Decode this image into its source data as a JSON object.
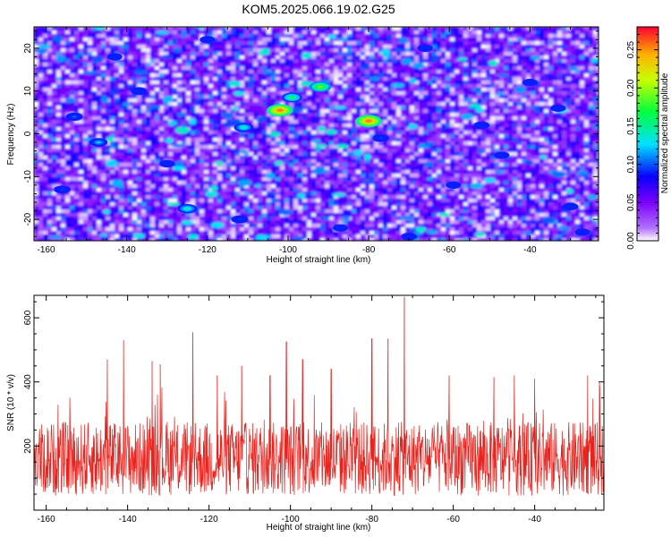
{
  "title": "KOM5.2025.066.19.02.G25",
  "chart_data": [
    {
      "type": "heatmap",
      "title": "KOM5.2025.066.19.02.G25",
      "xlabel": "Height of straight line (km)",
      "ylabel": "Frequency (Hz)",
      "xlim": [
        -163,
        -23
      ],
      "ylim": [
        -25,
        25
      ],
      "x_ticks": [
        -160,
        -140,
        -120,
        -100,
        -80,
        -60,
        -40
      ],
      "x_tick_labels": [
        "-160",
        "-140",
        "-120",
        "-100",
        "-80",
        "-60",
        "-40"
      ],
      "y_ticks": [
        -20,
        -10,
        0,
        10,
        20
      ],
      "y_tick_labels": [
        "-20",
        "-10",
        "0",
        "10",
        "20"
      ],
      "colorbar": {
        "label": "Normalized spectral amplitude",
        "range": [
          0,
          0.28
        ],
        "ticks": [
          0,
          0.05,
          0.1,
          0.15,
          0.2,
          0.25
        ],
        "tick_labels": [
          "0.00",
          "0.05",
          "0.10",
          "0.15",
          "0.20",
          "0.25"
        ],
        "colormap": [
          "#ffffff",
          "#8800ff",
          "#0000ff",
          "#00ffff",
          "#00ff00",
          "#ffff00",
          "#ff0000"
        ]
      },
      "peaks": [
        {
          "x": -102,
          "y": 5.5,
          "value": 0.27
        },
        {
          "x": -80,
          "y": 3,
          "value": 0.27
        },
        {
          "x": -92,
          "y": 11,
          "value": 0.2
        },
        {
          "x": -99,
          "y": 8.5,
          "value": 0.17
        },
        {
          "x": -111,
          "y": 1.5,
          "value": 0.15
        },
        {
          "x": -125,
          "y": -17.5,
          "value": 0.15
        },
        {
          "x": -147,
          "y": -2,
          "value": 0.13
        },
        {
          "x": -153,
          "y": 4,
          "value": 0.11
        },
        {
          "x": -112,
          "y": -20,
          "value": 0.1
        },
        {
          "x": -77,
          "y": -1,
          "value": 0.1
        },
        {
          "x": -156,
          "y": -13,
          "value": 0.1
        },
        {
          "x": -137,
          "y": 10,
          "value": 0.09
        },
        {
          "x": -52,
          "y": 2,
          "value": 0.09
        },
        {
          "x": -30,
          "y": -17,
          "value": 0.09
        },
        {
          "x": -70,
          "y": -24,
          "value": 0.09
        },
        {
          "x": -40,
          "y": 12,
          "value": 0.08
        },
        {
          "x": -59,
          "y": -12,
          "value": 0.08
        },
        {
          "x": -87,
          "y": -22,
          "value": 0.08
        },
        {
          "x": -143,
          "y": 18,
          "value": 0.08
        },
        {
          "x": -66,
          "y": 20,
          "value": 0.08
        },
        {
          "x": -120,
          "y": 22,
          "value": 0.08
        },
        {
          "x": -47,
          "y": -5,
          "value": 0.08
        },
        {
          "x": -33,
          "y": 6,
          "value": 0.08
        },
        {
          "x": -130,
          "y": -7,
          "value": 0.08
        },
        {
          "x": -27,
          "y": -23,
          "value": 0.08
        }
      ],
      "background_level": 0.05,
      "grid": false
    },
    {
      "type": "line",
      "xlabel": "Height of straight line (km)",
      "ylabel": "SNR (10 * v/v)",
      "xlim": [
        -163,
        -23
      ],
      "ylim": [
        0,
        670
      ],
      "x_ticks": [
        -160,
        -140,
        -120,
        -100,
        -80,
        -60,
        -40
      ],
      "x_tick_labels": [
        "-160",
        "-140",
        "-120",
        "-100",
        "-80",
        "-60",
        "-40"
      ],
      "y_ticks": [
        200,
        400,
        600
      ],
      "y_tick_labels": [
        "200",
        "400",
        "600"
      ],
      "series_color": "#e8231e",
      "baseline": 160,
      "noise_amplitude": 115,
      "peaks": [
        {
          "x": -145,
          "y": 470
        },
        {
          "x": -141,
          "y": 530
        },
        {
          "x": -134,
          "y": 465
        },
        {
          "x": -132,
          "y": 455
        },
        {
          "x": -124,
          "y": 555
        },
        {
          "x": -118,
          "y": 420
        },
        {
          "x": -112,
          "y": 450
        },
        {
          "x": -105,
          "y": 420
        },
        {
          "x": -101,
          "y": 525
        },
        {
          "x": -97,
          "y": 470
        },
        {
          "x": -90,
          "y": 440
        },
        {
          "x": -80,
          "y": 535
        },
        {
          "x": -76,
          "y": 535
        },
        {
          "x": -72,
          "y": 665
        },
        {
          "x": -61,
          "y": 420
        },
        {
          "x": -50,
          "y": 415
        },
        {
          "x": -45,
          "y": 420
        },
        {
          "x": -40,
          "y": 410
        },
        {
          "x": -27,
          "y": 420
        },
        {
          "x": -24,
          "y": 380
        }
      ],
      "grid": false
    }
  ]
}
